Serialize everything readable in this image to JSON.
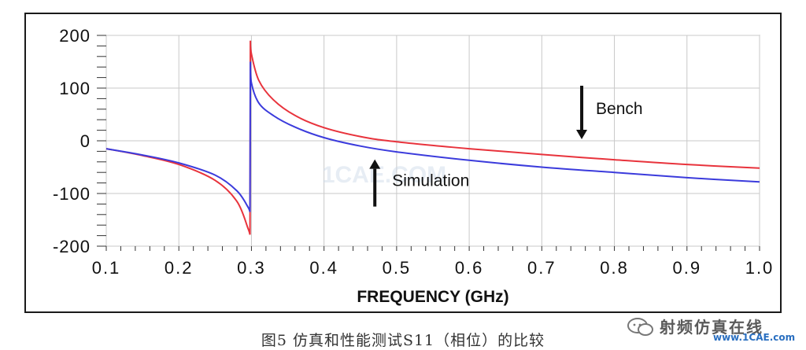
{
  "chart_data": {
    "type": "line",
    "title": "",
    "xlabel": "FREQUENCY (GHz)",
    "ylabel": "",
    "xlim": [
      0.1,
      1.0
    ],
    "ylim": [
      -200,
      200
    ],
    "x_ticks": [
      "0.1",
      "0.2",
      "0.3",
      "0.4",
      "0.5",
      "0.6",
      "0.7",
      "0.8",
      "0.9",
      "1.0"
    ],
    "y_ticks": [
      "200",
      "100",
      "0",
      "-100",
      "-200"
    ],
    "grid": true,
    "series": [
      {
        "name": "Bench",
        "color": "#e8333c",
        "points": [
          [
            0.1,
            -15
          ],
          [
            0.15,
            -28
          ],
          [
            0.2,
            -45
          ],
          [
            0.25,
            -75
          ],
          [
            0.28,
            -115
          ],
          [
            0.295,
            -165
          ],
          [
            0.298,
            -178
          ],
          [
            0.2985,
            190
          ],
          [
            0.3,
            165
          ],
          [
            0.31,
            115
          ],
          [
            0.33,
            78
          ],
          [
            0.36,
            48
          ],
          [
            0.4,
            25
          ],
          [
            0.45,
            8
          ],
          [
            0.5,
            -2
          ],
          [
            0.6,
            -15
          ],
          [
            0.7,
            -26
          ],
          [
            0.8,
            -36
          ],
          [
            0.9,
            -45
          ],
          [
            1.0,
            -52
          ]
        ]
      },
      {
        "name": "Simulation",
        "color": "#3b3bdc",
        "points": [
          [
            0.1,
            -15
          ],
          [
            0.15,
            -27
          ],
          [
            0.2,
            -42
          ],
          [
            0.25,
            -65
          ],
          [
            0.28,
            -95
          ],
          [
            0.295,
            -125
          ],
          [
            0.298,
            -135
          ],
          [
            0.2985,
            150
          ],
          [
            0.3,
            110
          ],
          [
            0.31,
            72
          ],
          [
            0.33,
            48
          ],
          [
            0.36,
            26
          ],
          [
            0.4,
            6
          ],
          [
            0.45,
            -10
          ],
          [
            0.5,
            -21
          ],
          [
            0.6,
            -37
          ],
          [
            0.7,
            -50
          ],
          [
            0.8,
            -60
          ],
          [
            0.9,
            -70
          ],
          [
            1.0,
            -78
          ]
        ]
      }
    ],
    "annotations": [
      {
        "text": "Bench",
        "arrow": "down",
        "x": 0.755,
        "y": 3
      },
      {
        "text": "Simulation",
        "arrow": "up",
        "x": 0.47,
        "y": -95
      }
    ]
  },
  "faint_watermark": "1CAE.COM",
  "caption": "图5 仿真和性能测试S11（相位）的比较",
  "watermark": {
    "name": "射频仿真在线",
    "site": "www.1CAE.com"
  }
}
